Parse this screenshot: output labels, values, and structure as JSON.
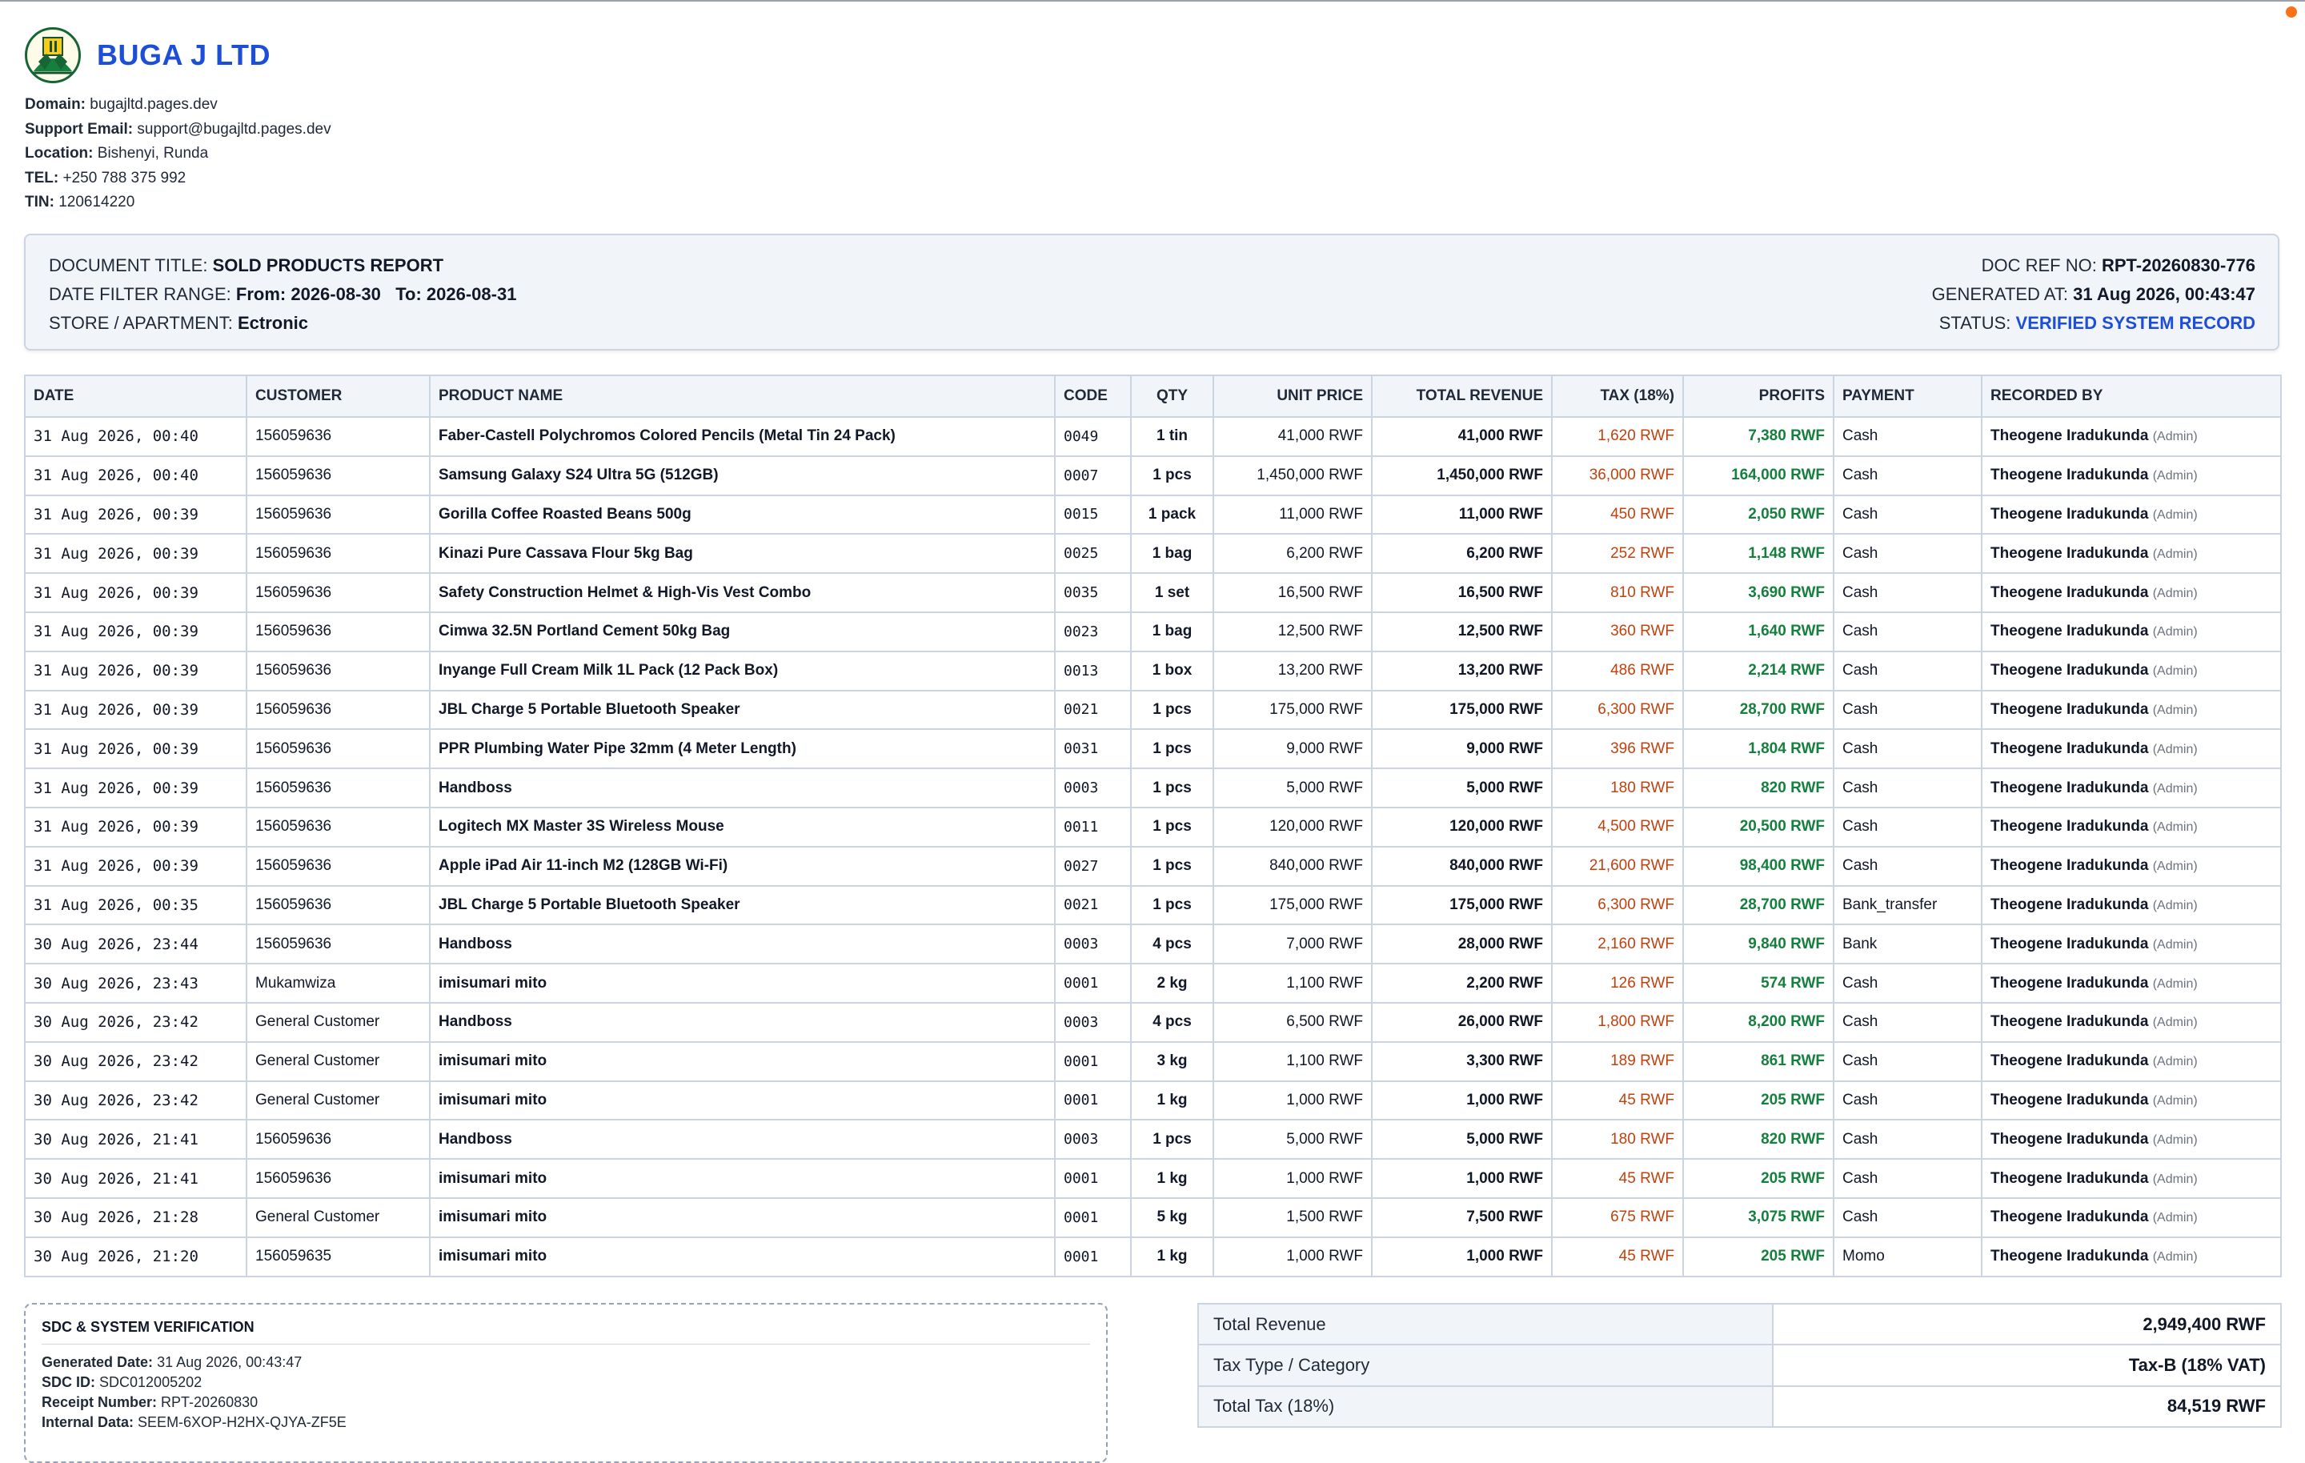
{
  "company": {
    "name": "BUGA J LTD",
    "info": [
      {
        "label": "Domain:",
        "value": "bugajltd.pages.dev"
      },
      {
        "label": "Support Email:",
        "value": "support@bugajltd.pages.dev"
      },
      {
        "label": "Location:",
        "value": "Bishenyi, Runda"
      },
      {
        "label": "TEL:",
        "value": "+250 788 375 992"
      },
      {
        "label": "TIN:",
        "value": "120614220"
      }
    ]
  },
  "document": {
    "title_label": "DOCUMENT TITLE:",
    "title_value": "SOLD PRODUCTS REPORT",
    "date_label": "DATE FILTER RANGE:",
    "date_from": "From: 2026-08-30",
    "date_to": "To: 2026-08-31",
    "store_label": "STORE / APARTMENT:",
    "store_value": "Ectronic",
    "ref_label": "DOC REF NO:",
    "ref_value": "RPT-20260830-776",
    "generated_label": "GENERATED AT:",
    "generated_value": "31 Aug 2026, 00:43:47",
    "status_label": "STATUS:",
    "status_value": "VERIFIED SYSTEM RECORD"
  },
  "table": {
    "headers": [
      "DATE",
      "CUSTOMER",
      "PRODUCT NAME",
      "CODE",
      "QTY",
      "UNIT PRICE",
      "TOTAL REVENUE",
      "TAX (18%)",
      "PROFITS",
      "PAYMENT",
      "RECORDED BY"
    ],
    "rows": [
      {
        "date": "31 Aug 2026, 00:40",
        "customer": "156059636",
        "product": "Faber-Castell Polychromos Colored Pencils (Metal Tin 24 Pack)",
        "code": "0049",
        "qty": "1 tin",
        "unit": "41,000 RWF",
        "total": "41,000 RWF",
        "tax": "1,620 RWF",
        "profit": "7,380 RWF",
        "payment": "Cash",
        "recorder": "Theogene Iradukunda",
        "role": "(Admin)"
      },
      {
        "date": "31 Aug 2026, 00:40",
        "customer": "156059636",
        "product": "Samsung Galaxy S24 Ultra 5G (512GB)",
        "code": "0007",
        "qty": "1 pcs",
        "unit": "1,450,000 RWF",
        "total": "1,450,000 RWF",
        "tax": "36,000 RWF",
        "profit": "164,000 RWF",
        "payment": "Cash",
        "recorder": "Theogene Iradukunda",
        "role": "(Admin)"
      },
      {
        "date": "31 Aug 2026, 00:39",
        "customer": "156059636",
        "product": "Gorilla Coffee Roasted Beans 500g",
        "code": "0015",
        "qty": "1 pack",
        "unit": "11,000 RWF",
        "total": "11,000 RWF",
        "tax": "450 RWF",
        "profit": "2,050 RWF",
        "payment": "Cash",
        "recorder": "Theogene Iradukunda",
        "role": "(Admin)"
      },
      {
        "date": "31 Aug 2026, 00:39",
        "customer": "156059636",
        "product": "Kinazi Pure Cassava Flour 5kg Bag",
        "code": "0025",
        "qty": "1 bag",
        "unit": "6,200 RWF",
        "total": "6,200 RWF",
        "tax": "252 RWF",
        "profit": "1,148 RWF",
        "payment": "Cash",
        "recorder": "Theogene Iradukunda",
        "role": "(Admin)"
      },
      {
        "date": "31 Aug 2026, 00:39",
        "customer": "156059636",
        "product": "Safety Construction Helmet & High-Vis Vest Combo",
        "code": "0035",
        "qty": "1 set",
        "unit": "16,500 RWF",
        "total": "16,500 RWF",
        "tax": "810 RWF",
        "profit": "3,690 RWF",
        "payment": "Cash",
        "recorder": "Theogene Iradukunda",
        "role": "(Admin)"
      },
      {
        "date": "31 Aug 2026, 00:39",
        "customer": "156059636",
        "product": "Cimwa 32.5N Portland Cement 50kg Bag",
        "code": "0023",
        "qty": "1 bag",
        "unit": "12,500 RWF",
        "total": "12,500 RWF",
        "tax": "360 RWF",
        "profit": "1,640 RWF",
        "payment": "Cash",
        "recorder": "Theogene Iradukunda",
        "role": "(Admin)"
      },
      {
        "date": "31 Aug 2026, 00:39",
        "customer": "156059636",
        "product": "Inyange Full Cream Milk 1L Pack (12 Pack Box)",
        "code": "0013",
        "qty": "1 box",
        "unit": "13,200 RWF",
        "total": "13,200 RWF",
        "tax": "486 RWF",
        "profit": "2,214 RWF",
        "payment": "Cash",
        "recorder": "Theogene Iradukunda",
        "role": "(Admin)"
      },
      {
        "date": "31 Aug 2026, 00:39",
        "customer": "156059636",
        "product": "JBL Charge 5 Portable Bluetooth Speaker",
        "code": "0021",
        "qty": "1 pcs",
        "unit": "175,000 RWF",
        "total": "175,000 RWF",
        "tax": "6,300 RWF",
        "profit": "28,700 RWF",
        "payment": "Cash",
        "recorder": "Theogene Iradukunda",
        "role": "(Admin)"
      },
      {
        "date": "31 Aug 2026, 00:39",
        "customer": "156059636",
        "product": "PPR Plumbing Water Pipe 32mm (4 Meter Length)",
        "code": "0031",
        "qty": "1 pcs",
        "unit": "9,000 RWF",
        "total": "9,000 RWF",
        "tax": "396 RWF",
        "profit": "1,804 RWF",
        "payment": "Cash",
        "recorder": "Theogene Iradukunda",
        "role": "(Admin)"
      },
      {
        "date": "31 Aug 2026, 00:39",
        "customer": "156059636",
        "product": "Handboss",
        "code": "0003",
        "qty": "1 pcs",
        "unit": "5,000 RWF",
        "total": "5,000 RWF",
        "tax": "180 RWF",
        "profit": "820 RWF",
        "payment": "Cash",
        "recorder": "Theogene Iradukunda",
        "role": "(Admin)"
      },
      {
        "date": "31 Aug 2026, 00:39",
        "customer": "156059636",
        "product": "Logitech MX Master 3S Wireless Mouse",
        "code": "0011",
        "qty": "1 pcs",
        "unit": "120,000 RWF",
        "total": "120,000 RWF",
        "tax": "4,500 RWF",
        "profit": "20,500 RWF",
        "payment": "Cash",
        "recorder": "Theogene Iradukunda",
        "role": "(Admin)"
      },
      {
        "date": "31 Aug 2026, 00:39",
        "customer": "156059636",
        "product": "Apple iPad Air 11-inch M2 (128GB Wi-Fi)",
        "code": "0027",
        "qty": "1 pcs",
        "unit": "840,000 RWF",
        "total": "840,000 RWF",
        "tax": "21,600 RWF",
        "profit": "98,400 RWF",
        "payment": "Cash",
        "recorder": "Theogene Iradukunda",
        "role": "(Admin)"
      },
      {
        "date": "31 Aug 2026, 00:35",
        "customer": "156059636",
        "product": "JBL Charge 5 Portable Bluetooth Speaker",
        "code": "0021",
        "qty": "1 pcs",
        "unit": "175,000 RWF",
        "total": "175,000 RWF",
        "tax": "6,300 RWF",
        "profit": "28,700 RWF",
        "payment": "Bank_transfer",
        "recorder": "Theogene Iradukunda",
        "role": "(Admin)"
      },
      {
        "date": "30 Aug 2026, 23:44",
        "customer": "156059636",
        "product": "Handboss",
        "code": "0003",
        "qty": "4 pcs",
        "unit": "7,000 RWF",
        "total": "28,000 RWF",
        "tax": "2,160 RWF",
        "profit": "9,840 RWF",
        "payment": "Bank",
        "recorder": "Theogene Iradukunda",
        "role": "(Admin)"
      },
      {
        "date": "30 Aug 2026, 23:43",
        "customer": "Mukamwiza",
        "product": "imisumari mito",
        "code": "0001",
        "qty": "2 kg",
        "unit": "1,100 RWF",
        "total": "2,200 RWF",
        "tax": "126 RWF",
        "profit": "574 RWF",
        "payment": "Cash",
        "recorder": "Theogene Iradukunda",
        "role": "(Admin)"
      },
      {
        "date": "30 Aug 2026, 23:42",
        "customer": "General Customer",
        "product": "Handboss",
        "code": "0003",
        "qty": "4 pcs",
        "unit": "6,500 RWF",
        "total": "26,000 RWF",
        "tax": "1,800 RWF",
        "profit": "8,200 RWF",
        "payment": "Cash",
        "recorder": "Theogene Iradukunda",
        "role": "(Admin)"
      },
      {
        "date": "30 Aug 2026, 23:42",
        "customer": "General Customer",
        "product": "imisumari mito",
        "code": "0001",
        "qty": "3 kg",
        "unit": "1,100 RWF",
        "total": "3,300 RWF",
        "tax": "189 RWF",
        "profit": "861 RWF",
        "payment": "Cash",
        "recorder": "Theogene Iradukunda",
        "role": "(Admin)"
      },
      {
        "date": "30 Aug 2026, 23:42",
        "customer": "General Customer",
        "product": "imisumari mito",
        "code": "0001",
        "qty": "1 kg",
        "unit": "1,000 RWF",
        "total": "1,000 RWF",
        "tax": "45 RWF",
        "profit": "205 RWF",
        "payment": "Cash",
        "recorder": "Theogene Iradukunda",
        "role": "(Admin)"
      },
      {
        "date": "30 Aug 2026, 21:41",
        "customer": "156059636",
        "product": "Handboss",
        "code": "0003",
        "qty": "1 pcs",
        "unit": "5,000 RWF",
        "total": "5,000 RWF",
        "tax": "180 RWF",
        "profit": "820 RWF",
        "payment": "Cash",
        "recorder": "Theogene Iradukunda",
        "role": "(Admin)"
      },
      {
        "date": "30 Aug 2026, 21:41",
        "customer": "156059636",
        "product": "imisumari mito",
        "code": "0001",
        "qty": "1 kg",
        "unit": "1,000 RWF",
        "total": "1,000 RWF",
        "tax": "45 RWF",
        "profit": "205 RWF",
        "payment": "Cash",
        "recorder": "Theogene Iradukunda",
        "role": "(Admin)"
      },
      {
        "date": "30 Aug 2026, 21:28",
        "customer": "General Customer",
        "product": "imisumari mito",
        "code": "0001",
        "qty": "5 kg",
        "unit": "1,500 RWF",
        "total": "7,500 RWF",
        "tax": "675 RWF",
        "profit": "3,075 RWF",
        "payment": "Cash",
        "recorder": "Theogene Iradukunda",
        "role": "(Admin)"
      },
      {
        "date": "30 Aug 2026, 21:20",
        "customer": "156059635",
        "product": "imisumari mito",
        "code": "0001",
        "qty": "1 kg",
        "unit": "1,000 RWF",
        "total": "1,000 RWF",
        "tax": "45 RWF",
        "profit": "205 RWF",
        "payment": "Momo",
        "recorder": "Theogene Iradukunda",
        "role": "(Admin)"
      }
    ]
  },
  "sdc": {
    "title": "SDC & SYSTEM VERIFICATION",
    "lines": [
      {
        "label": "Generated Date:",
        "value": "31 Aug 2026, 00:43:47"
      },
      {
        "label": "SDC ID:",
        "value": "SDC012005202"
      },
      {
        "label": "Receipt Number:",
        "value": "RPT-20260830"
      },
      {
        "label": "Internal Data:",
        "value": "SEEM-6XOP-H2HX-QJYA-ZF5E"
      }
    ]
  },
  "totals": [
    {
      "label": "Total Revenue",
      "value": "2,949,400 RWF"
    },
    {
      "label": "Tax Type / Category",
      "value": "Tax-B (18% VAT)"
    },
    {
      "label": "Total Tax (18%)",
      "value": "84,519 RWF"
    }
  ],
  "colors": {
    "brand": "#1d4ed8",
    "tax": "#c2410c",
    "profit": "#15803d",
    "status": "#1d4ed8",
    "notification": "#f97316"
  },
  "icons": {
    "logo": "company-logo",
    "notification": "notification-dot"
  }
}
